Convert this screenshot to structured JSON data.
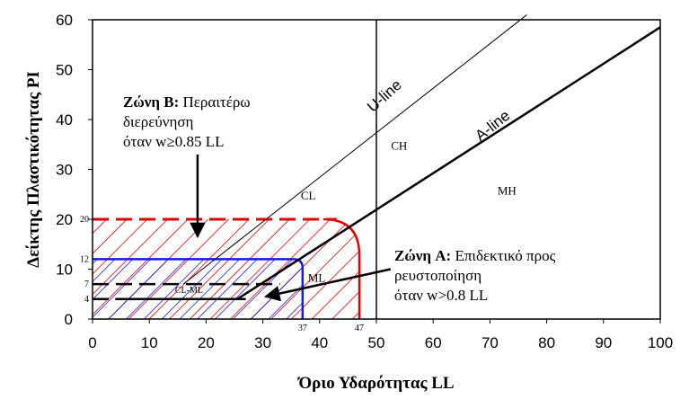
{
  "chart_data": {
    "type": "line",
    "xlabel": "Όριο Υδαρότητας LL",
    "ylabel": "Δείκτης Πλαστικότητας PI",
    "xlim": [
      0,
      100
    ],
    "ylim": [
      0,
      60
    ],
    "x_ticks": [
      "0",
      "10",
      "20",
      "30",
      "40",
      "50",
      "60",
      "70",
      "80",
      "90",
      "100"
    ],
    "y_ticks": [
      "0",
      "10",
      "20",
      "30",
      "40",
      "50",
      "60"
    ],
    "grid": false,
    "lines": [
      {
        "name": "U-line",
        "color": "#000000",
        "width": 1,
        "points": [
          [
            16,
            7
          ],
          [
            76.5,
            61
          ]
        ]
      },
      {
        "name": "A-line",
        "color": "#000000",
        "width": 2.5,
        "points": [
          [
            4,
            4
          ],
          [
            25.5,
            4
          ],
          [
            100,
            58.5
          ]
        ]
      },
      {
        "name": "LL 50",
        "color": "#000000",
        "width": 1.5,
        "points": [
          [
            50,
            0
          ],
          [
            50,
            60
          ]
        ]
      }
    ],
    "zones": [
      {
        "id": "zone_b",
        "color": "#e00000",
        "ll_max": 47,
        "pi_min": 20,
        "hatch": "red"
      },
      {
        "id": "zone_a",
        "color": "#1a1adf",
        "ll_max": 37,
        "pi_min": 12,
        "hatch": "blue"
      }
    ],
    "dashed_lines": [
      {
        "y": 20,
        "color": "#e00000"
      },
      {
        "y": 7,
        "color": "#000000"
      },
      {
        "y": 4,
        "color": "#000000"
      }
    ],
    "region_labels": [
      {
        "text": "CL",
        "x": 38,
        "y": 24
      },
      {
        "text": "CH",
        "x": 54,
        "y": 34
      },
      {
        "text": "MH",
        "x": 73,
        "y": 25
      },
      {
        "text": "ML",
        "x": 39.5,
        "y": 7.5
      },
      {
        "text": "CL-ML",
        "x": 17,
        "y": 5.2
      }
    ],
    "line_labels": [
      {
        "text": "U-line",
        "x": 52,
        "y": 44,
        "angle": -42
      },
      {
        "text": "A-line",
        "x": 71,
        "y": 38,
        "angle": -38
      }
    ],
    "threshold_labels": [
      {
        "text": "20",
        "axis": "y",
        "value": 20
      },
      {
        "text": "12",
        "axis": "y",
        "value": 12
      },
      {
        "text": "7",
        "axis": "y",
        "value": 7
      },
      {
        "text": "4",
        "axis": "y",
        "value": 4
      },
      {
        "text": "37",
        "axis": "x",
        "value": 37
      },
      {
        "text": "47",
        "axis": "x",
        "value": 47
      }
    ],
    "annotations": {
      "zone_b": {
        "title_bold": "Ζώνη B:",
        "title_rest": " Περαιτέρω",
        "line2": "διερεύνηση",
        "line3": "όταν w≥0.85 LL",
        "arrow_from": [
          18.5,
          33
        ],
        "arrow_to": [
          18.5,
          16.5
        ]
      },
      "zone_a": {
        "title_bold": "Ζώνη A:",
        "title_rest": " Επιδεκτικό προς",
        "line2": "ρευστοποίηση",
        "line3": "όταν w>0.8 LL",
        "arrow_from": [
          52.5,
          10
        ],
        "arrow_to": [
          30.5,
          4.5
        ]
      }
    }
  }
}
